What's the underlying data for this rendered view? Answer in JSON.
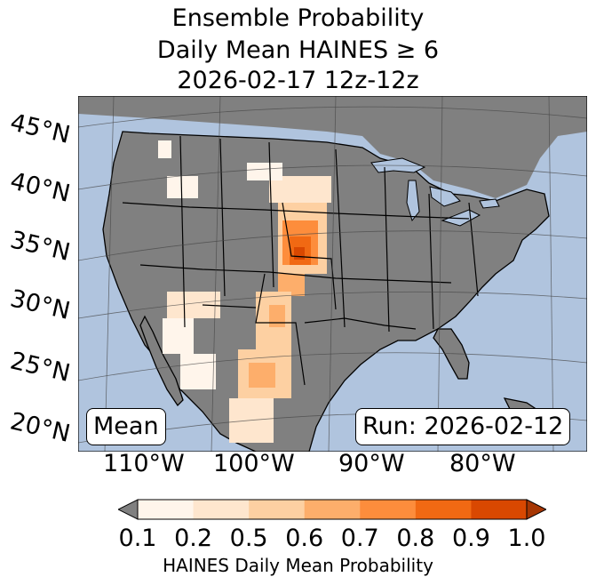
{
  "title": {
    "line1": "Ensemble Probability",
    "line2": "Daily Mean HAINES ≥ 6",
    "line3": "2026-02-17 12z-12z"
  },
  "lat_labels": [
    "45°N",
    "40°N",
    "35°N",
    "30°N",
    "25°N",
    "20°N"
  ],
  "lon_labels": [
    "110°W",
    "100°W",
    "90°W",
    "80°W"
  ],
  "box_left": "Mean",
  "box_right": "Run: 2026-02-12",
  "colorbar": {
    "label": "HAINES Daily Mean Probability",
    "ticks": [
      "0.1",
      "0.2",
      "0.5",
      "0.6",
      "0.7",
      "0.8",
      "0.9",
      "1.0"
    ],
    "colors": [
      "#fff5eb",
      "#fee6ce",
      "#fdd0a2",
      "#fdae6b",
      "#fd8d3c",
      "#f16913",
      "#d94801",
      "#a63603"
    ],
    "under_color": "#808080"
  },
  "colors": {
    "ocean": "#b0c4de",
    "land": "#808080",
    "borders": "#000000",
    "grid": "#444444"
  }
}
